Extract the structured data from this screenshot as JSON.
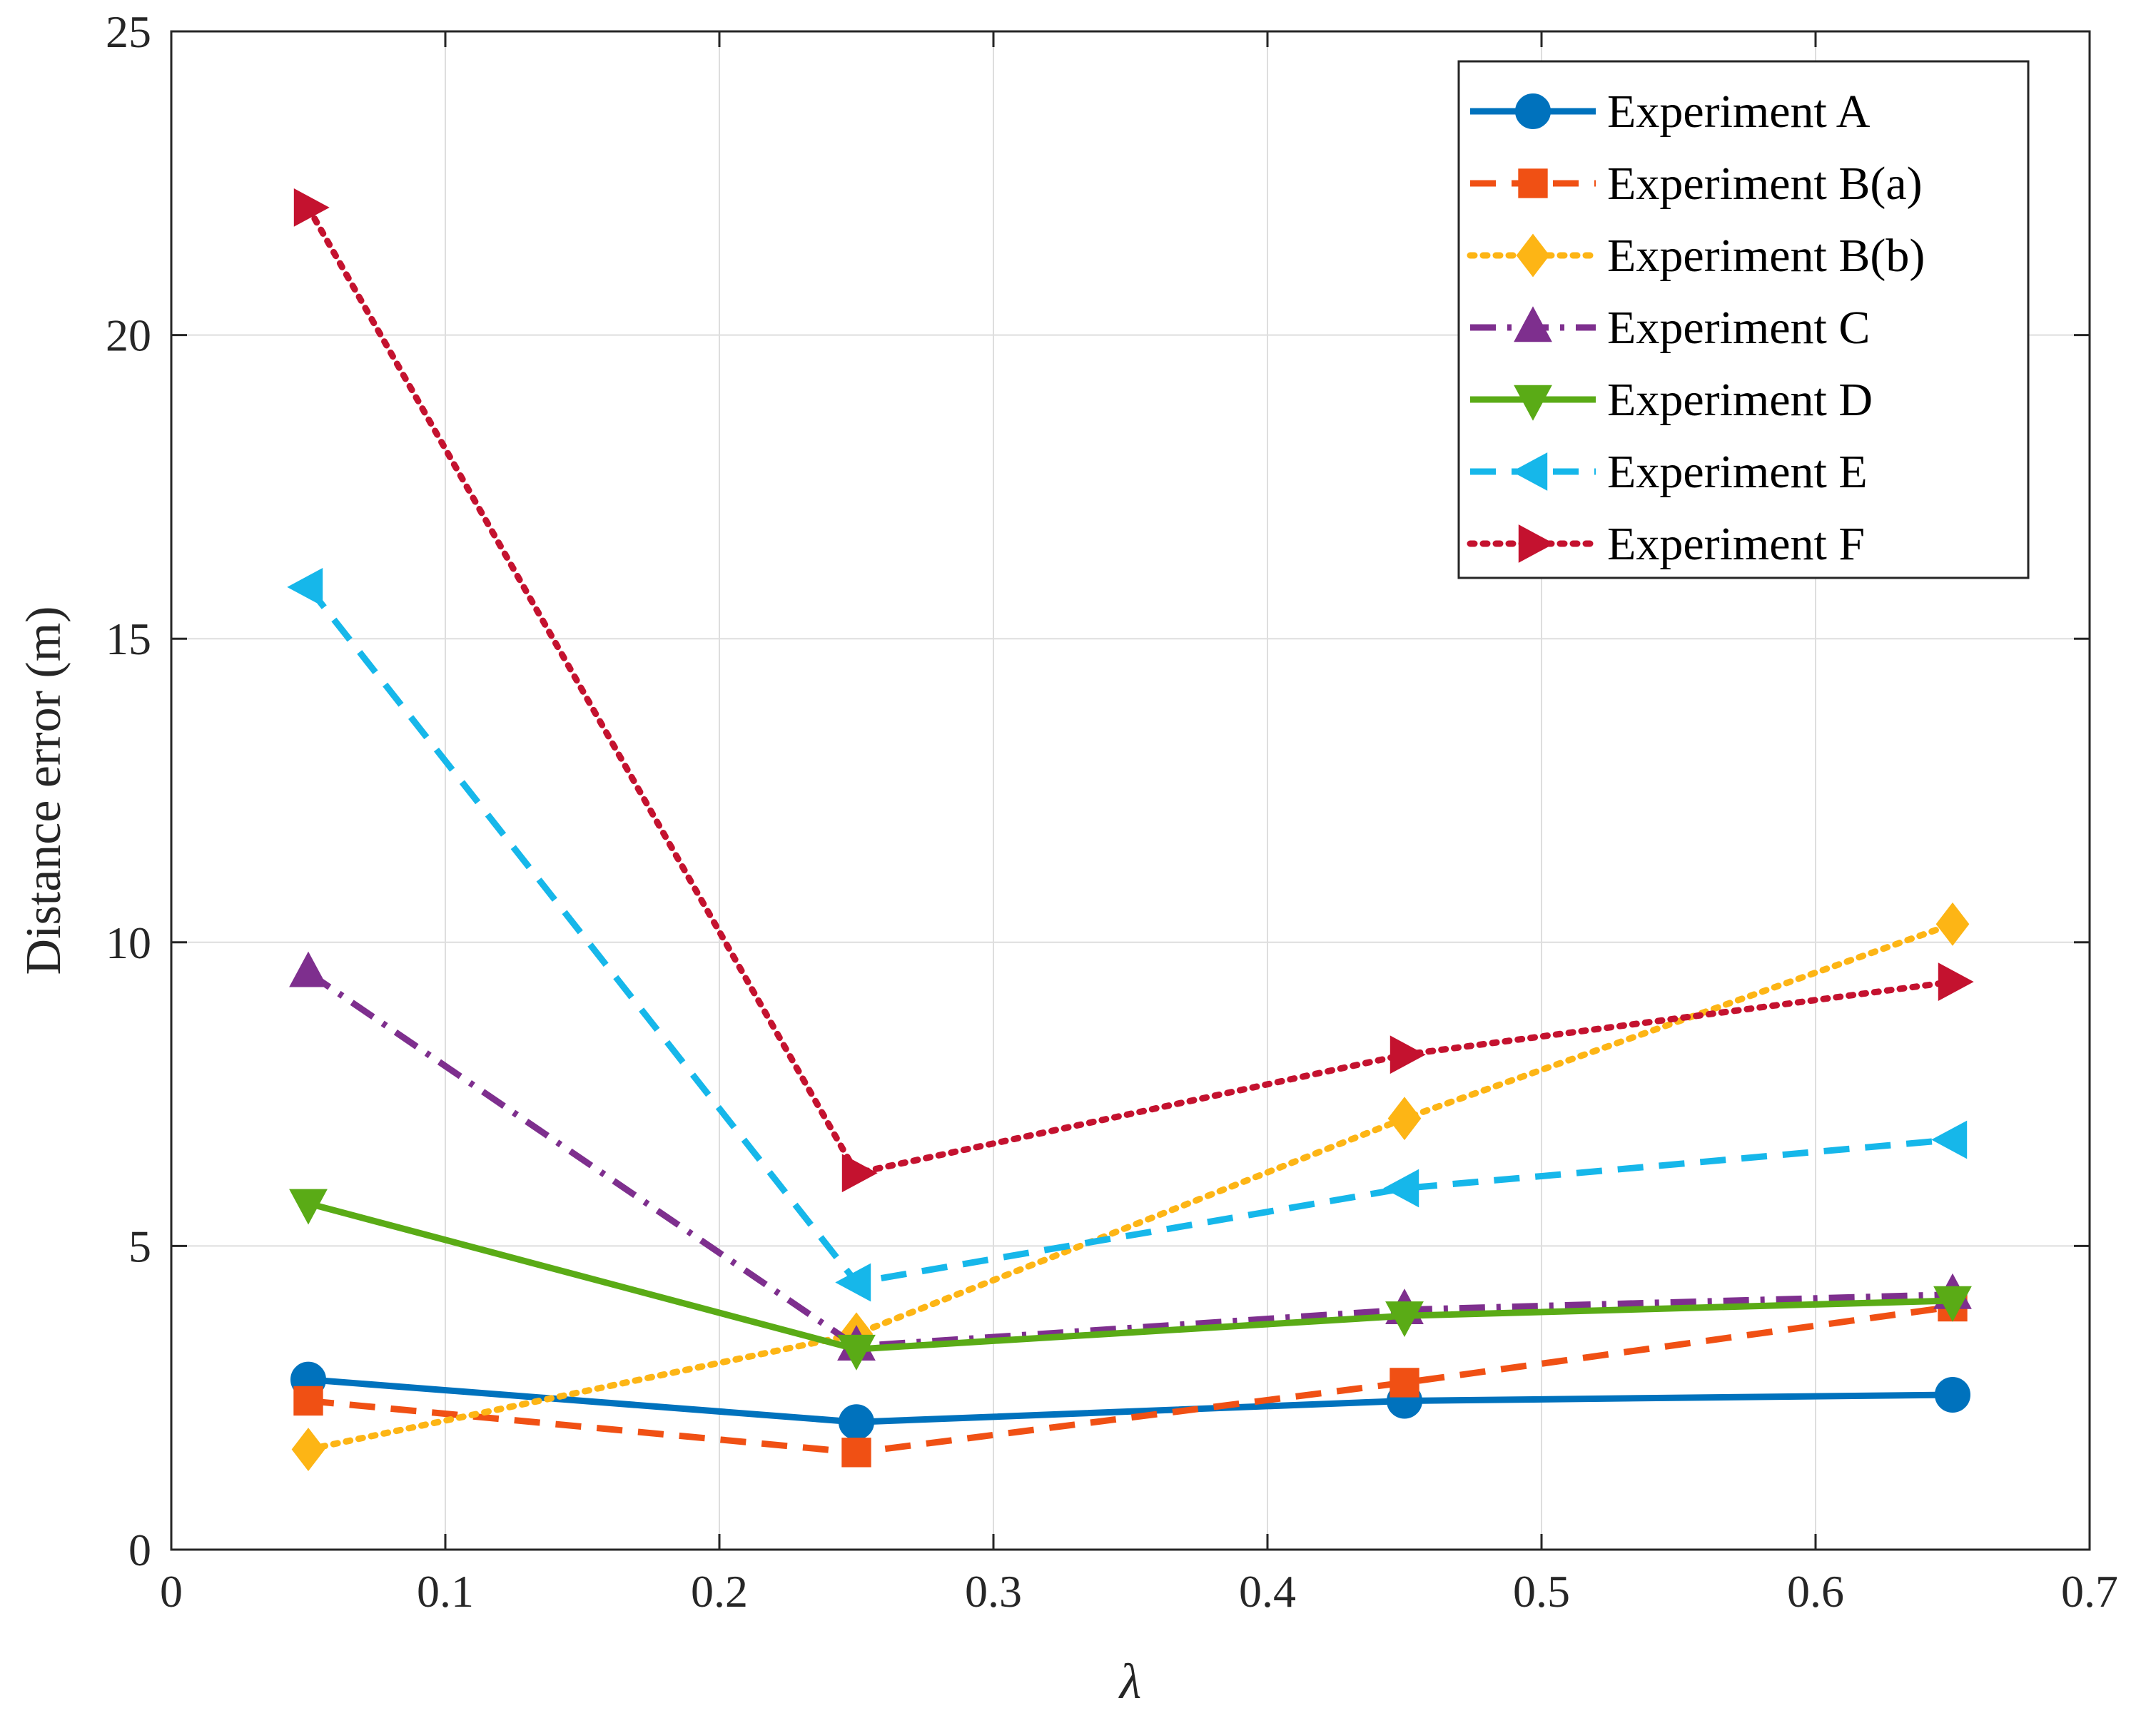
{
  "chart_data": {
    "type": "line",
    "title": "",
    "xlabel": "λ",
    "ylabel": "Distance error (m)",
    "xlim": [
      0,
      0.7
    ],
    "ylim": [
      0,
      25
    ],
    "xticks": [
      0,
      0.1,
      0.2,
      0.3,
      0.4,
      0.5,
      0.6,
      0.7
    ],
    "xtick_labels": [
      "0",
      "0.1",
      "0.2",
      "0.3",
      "0.4",
      "0.5",
      "0.6",
      "0.7"
    ],
    "yticks": [
      0,
      5,
      10,
      15,
      20,
      25
    ],
    "ytick_labels": [
      "0",
      "5",
      "10",
      "15",
      "20",
      "25"
    ],
    "grid": true,
    "legend_position": "top-right",
    "x": [
      0.05,
      0.25,
      0.45,
      0.65
    ],
    "series": [
      {
        "name": "Experiment A",
        "values": [
          2.8,
          2.1,
          2.45,
          2.55
        ],
        "color": "#0072bd",
        "dash": "solid",
        "marker": "circle"
      },
      {
        "name": "Experiment B(a)",
        "values": [
          2.45,
          1.6,
          2.75,
          4.0
        ],
        "color": "#f05014",
        "dash": "dashed",
        "marker": "square"
      },
      {
        "name": "Experiment B(b)",
        "values": [
          1.65,
          3.55,
          7.1,
          10.3
        ],
        "color": "#fdb515",
        "dash": "dotted",
        "marker": "diamond"
      },
      {
        "name": "Experiment C",
        "values": [
          9.5,
          3.35,
          3.95,
          4.2
        ],
        "color": "#7e2f8e",
        "dash": "dashdot",
        "marker": "triangle-up"
      },
      {
        "name": "Experiment D",
        "values": [
          5.7,
          3.3,
          3.85,
          4.1
        ],
        "color": "#5aab16",
        "dash": "solid",
        "marker": "triangle-down"
      },
      {
        "name": "Experiment E",
        "values": [
          15.85,
          4.4,
          5.95,
          6.75
        ],
        "color": "#16b7ea",
        "dash": "dashed",
        "marker": "triangle-left"
      },
      {
        "name": "Experiment F",
        "values": [
          22.1,
          6.2,
          8.15,
          9.35
        ],
        "color": "#c4122f",
        "dash": "dotted",
        "marker": "triangle-right"
      }
    ]
  }
}
